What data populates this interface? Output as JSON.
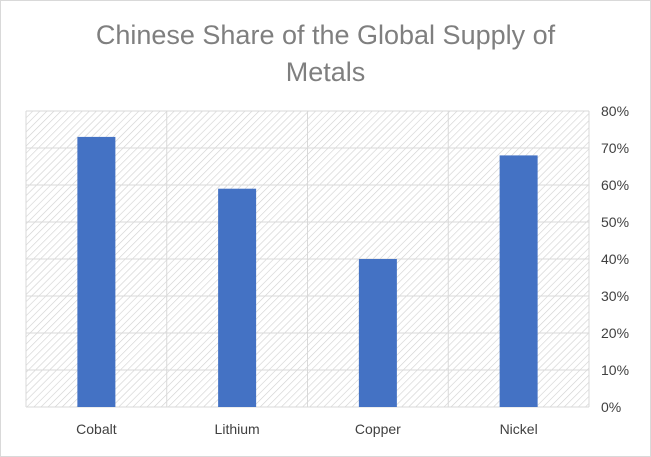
{
  "chart_data": {
    "type": "bar",
    "title_line1": "Chinese Share of the Global Supply of",
    "title_line2": "Metals",
    "categories": [
      "Cobalt",
      "Lithium",
      "Copper",
      "Nickel"
    ],
    "values": [
      73,
      59,
      40,
      68
    ],
    "unit": "%",
    "ylim": [
      0,
      80
    ],
    "yticks": [
      0,
      10,
      20,
      30,
      40,
      50,
      60,
      70,
      80
    ],
    "ytick_labels": [
      "0%",
      "10%",
      "20%",
      "30%",
      "40%",
      "50%",
      "60%",
      "70%",
      "80%"
    ],
    "y_axis_position": "right",
    "grid": true,
    "legend": "none",
    "bar_color": "#4472c4",
    "plot_background": "hatched"
  }
}
